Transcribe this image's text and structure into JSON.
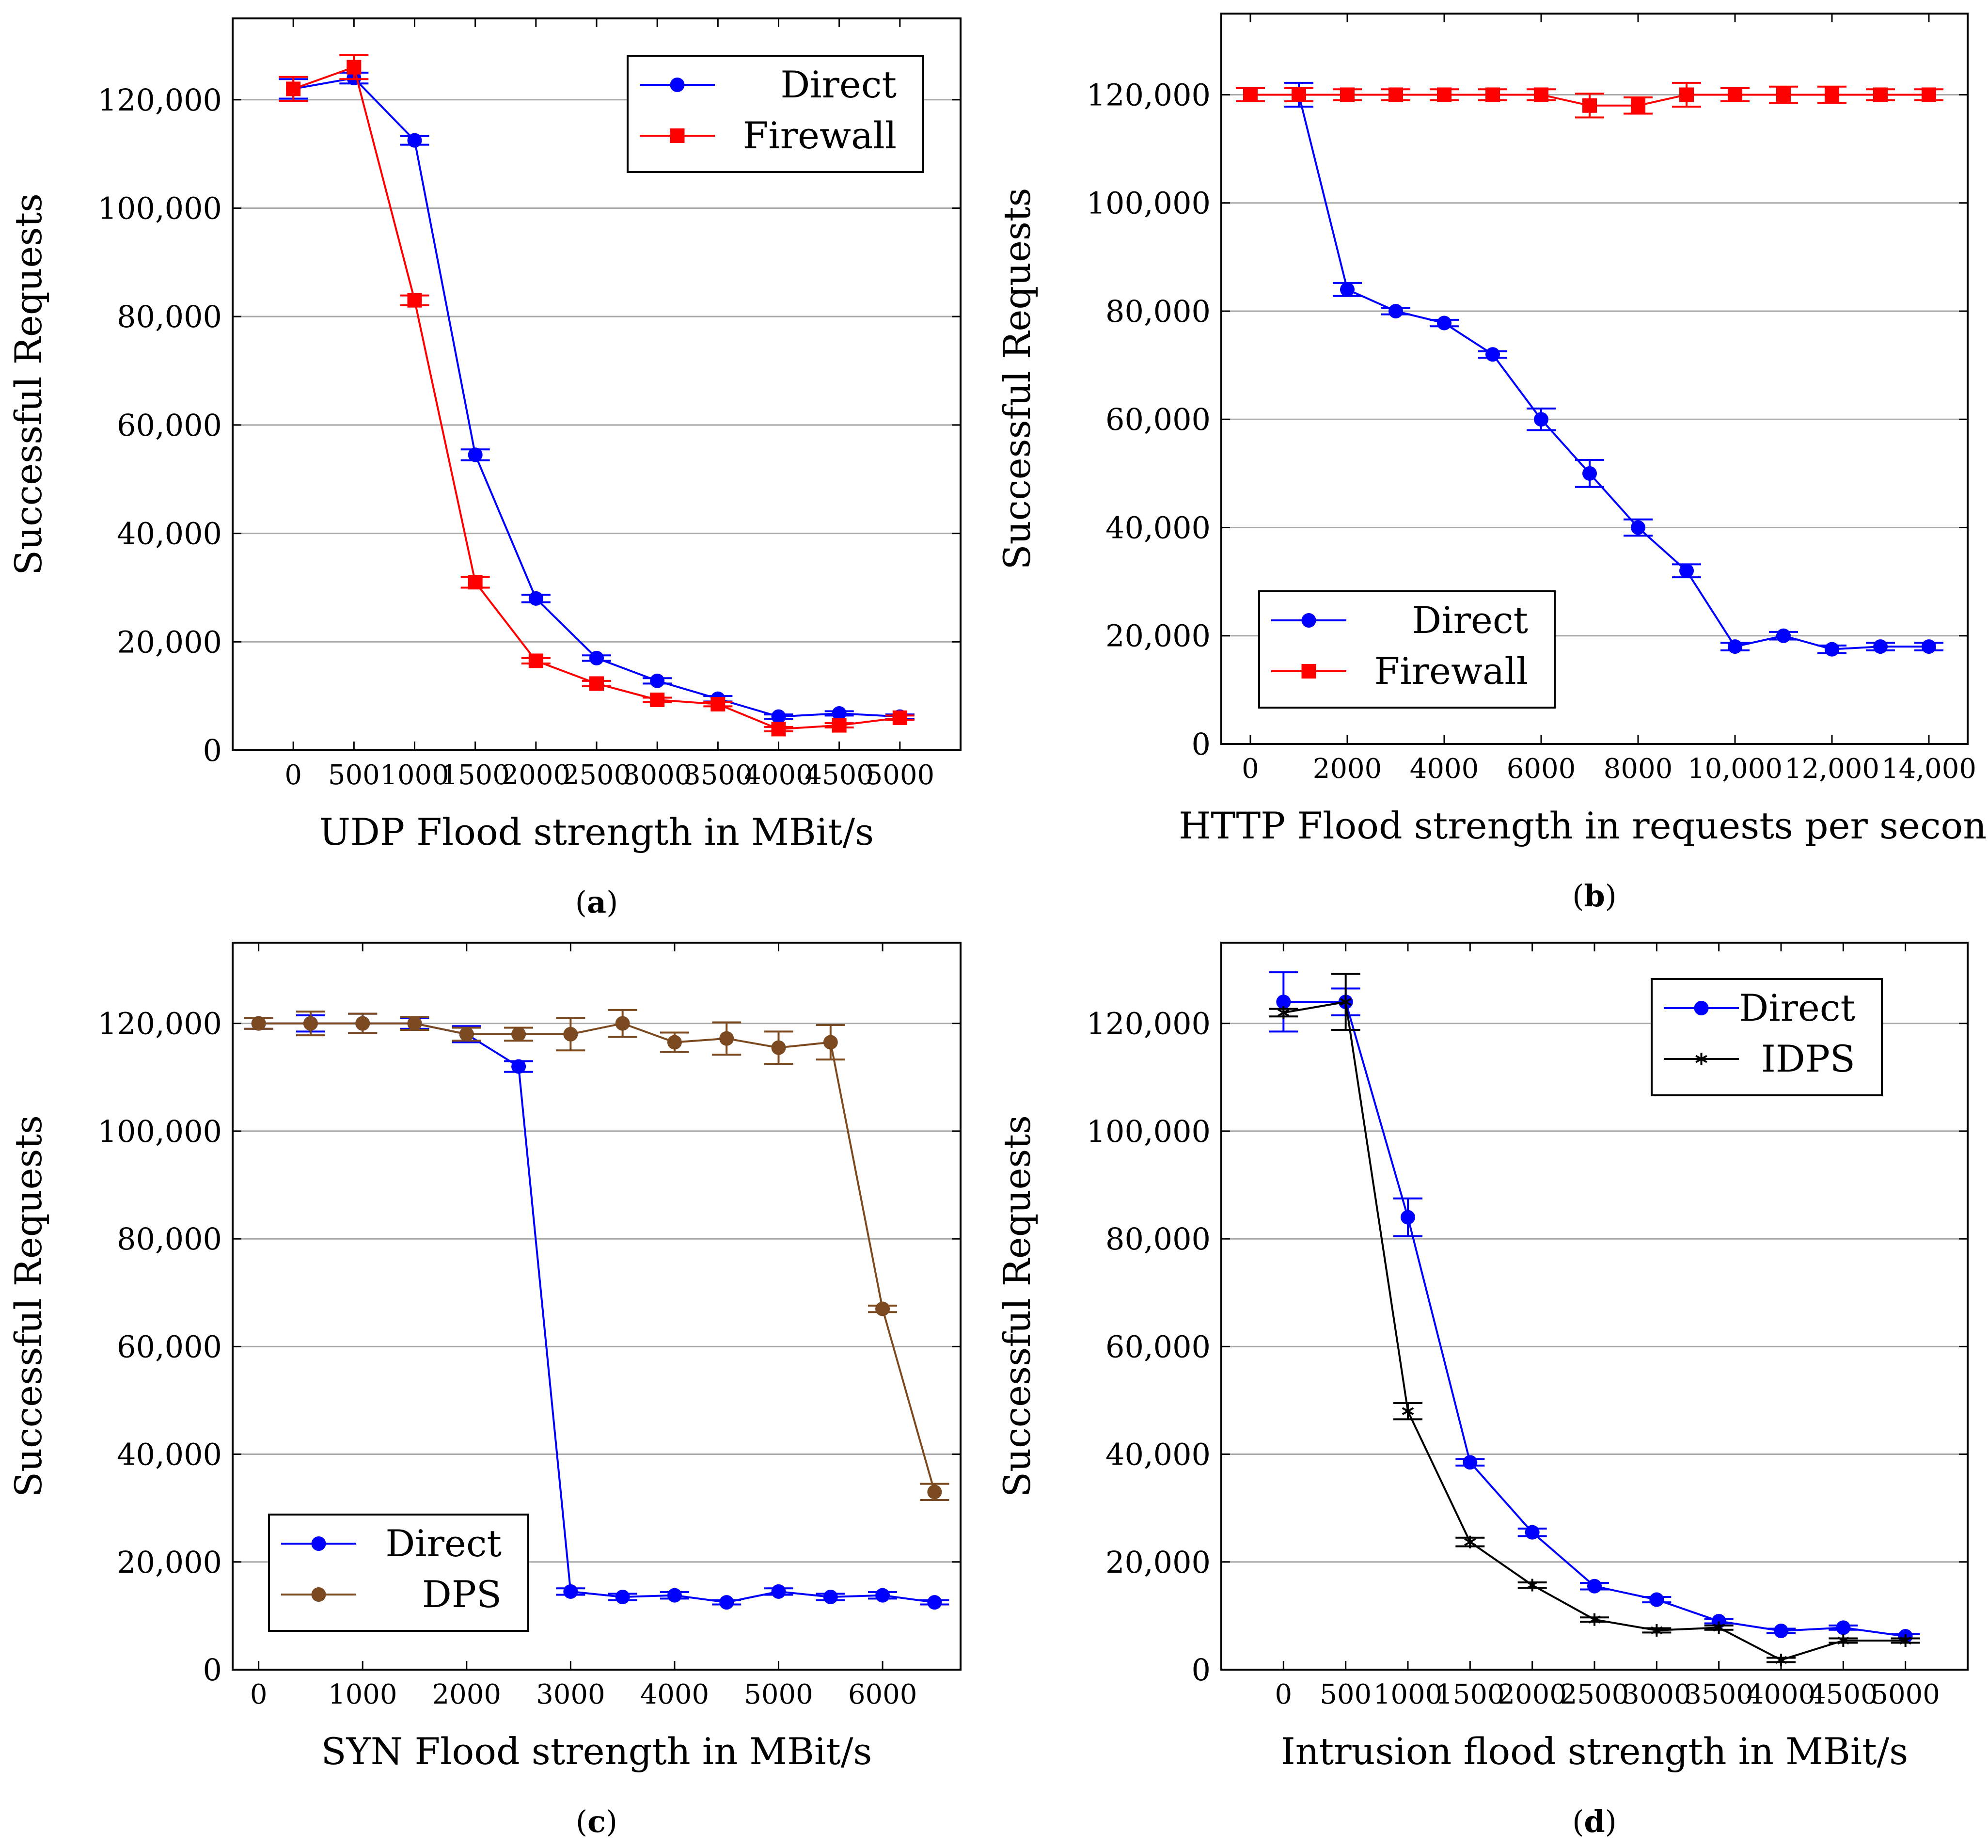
{
  "chart_data": [
    {
      "id": "a",
      "type": "line",
      "caption": "a",
      "title": "",
      "xlabel": "UDP Flood strength in MBit/s",
      "ylabel": "Successful Requests",
      "xticks": [
        "0",
        "500",
        "1000",
        "1500",
        "2000",
        "2500",
        "3000",
        "3500",
        "4000",
        "4500",
        "5000"
      ],
      "xlim": [
        -500,
        5500
      ],
      "ylim": [
        0,
        135000
      ],
      "yticks": [
        0,
        20000,
        40000,
        60000,
        80000,
        100000,
        120000
      ],
      "ytick_labels": [
        "0",
        "20,000",
        "40,000",
        "60,000",
        "80,000",
        "100,000",
        "120,000"
      ],
      "grid": "horizontal",
      "legend_position": "top-right",
      "series": [
        {
          "name": "Direct",
          "color": "#0000ff",
          "marker": "circle",
          "x": [
            0,
            500,
            1000,
            1500,
            2000,
            2500,
            3000,
            3500,
            4000,
            4500,
            5000
          ],
          "y": [
            122000,
            124000,
            112500,
            54500,
            28000,
            17000,
            12800,
            9500,
            6200,
            6800,
            6200
          ],
          "err": [
            1800,
            1000,
            800,
            1000,
            700,
            500,
            500,
            500,
            400,
            400,
            400
          ]
        },
        {
          "name": "Firewall",
          "color": "#ff0000",
          "marker": "square",
          "x": [
            0,
            500,
            1000,
            1500,
            2000,
            2500,
            3000,
            3500,
            4000,
            4500,
            5000
          ],
          "y": [
            122000,
            126000,
            83000,
            31000,
            16500,
            12300,
            9300,
            8500,
            3900,
            4600,
            6000
          ],
          "err": [
            2200,
            2200,
            900,
            1000,
            500,
            500,
            400,
            400,
            400,
            400,
            400
          ]
        }
      ]
    },
    {
      "id": "b",
      "type": "line",
      "caption": "b",
      "title": "",
      "xlabel": "HTTP Flood strength in requests per second",
      "ylabel": "Successful Requests",
      "xticks": [
        "0",
        "2000",
        "4000",
        "6000",
        "8000",
        "10,000",
        "12,000",
        "14,000"
      ],
      "xtick_values": [
        0,
        2000,
        4000,
        6000,
        8000,
        10000,
        12000,
        14000
      ],
      "xlim": [
        -600,
        14800
      ],
      "ylim": [
        0,
        135000
      ],
      "yticks": [
        0,
        20000,
        40000,
        60000,
        80000,
        100000,
        120000
      ],
      "ytick_labels": [
        "0",
        "20,000",
        "40,000",
        "60,000",
        "80,000",
        "100,000",
        "120,000"
      ],
      "grid": "horizontal",
      "legend_position": "bottom-left",
      "series": [
        {
          "name": "Direct",
          "color": "#0000ff",
          "marker": "circle",
          "x": [
            0,
            1000,
            2000,
            3000,
            4000,
            5000,
            6000,
            7000,
            8000,
            9000,
            10000,
            11000,
            12000,
            13000,
            14000
          ],
          "y": [
            120000,
            120000,
            84000,
            80000,
            77800,
            72000,
            60000,
            50000,
            40000,
            32000,
            18000,
            20000,
            17500,
            18000,
            18000
          ],
          "err": [
            1200,
            2200,
            1200,
            600,
            600,
            600,
            2000,
            2500,
            1500,
            1200,
            700,
            700,
            700,
            700,
            700
          ]
        },
        {
          "name": "Firewall",
          "color": "#ff0000",
          "marker": "square",
          "x": [
            0,
            1000,
            2000,
            3000,
            4000,
            5000,
            6000,
            7000,
            8000,
            9000,
            10000,
            11000,
            12000,
            13000,
            14000
          ],
          "y": [
            120000,
            120000,
            120000,
            120000,
            120000,
            120000,
            120000,
            118000,
            118000,
            120000,
            120000,
            120000,
            120000,
            120000,
            120000
          ],
          "err": [
            1200,
            1200,
            1000,
            1000,
            1000,
            1000,
            1000,
            2200,
            1500,
            2200,
            1200,
            1500,
            1500,
            1000,
            1000
          ]
        }
      ]
    },
    {
      "id": "c",
      "type": "line",
      "caption": "c",
      "title": "",
      "xlabel": "SYN Flood strength in MBit/s",
      "ylabel": "Successful Requests",
      "xticks": [
        "0",
        "1000",
        "2000",
        "3000",
        "4000",
        "5000",
        "6000"
      ],
      "xtick_values": [
        0,
        1000,
        2000,
        3000,
        4000,
        5000,
        6000
      ],
      "xlim": [
        -250,
        6750
      ],
      "ylim": [
        0,
        135000
      ],
      "yticks": [
        0,
        20000,
        40000,
        60000,
        80000,
        100000,
        120000
      ],
      "ytick_labels": [
        "0",
        "20,000",
        "40,000",
        "60,000",
        "80,000",
        "100,000",
        "120,000"
      ],
      "grid": "horizontal",
      "legend_position": "bottom-left",
      "series": [
        {
          "name": "Direct",
          "color": "#0000ff",
          "marker": "circle",
          "x": [
            0,
            500,
            1000,
            1500,
            2000,
            2500,
            3000,
            3500,
            4000,
            4500,
            5000,
            5500,
            6000,
            6500
          ],
          "y": [
            120000,
            120000,
            120000,
            120000,
            118000,
            112000,
            14500,
            13500,
            13800,
            12500,
            14500,
            13500,
            13800,
            12500
          ],
          "err": [
            1000,
            1500,
            1800,
            1000,
            1500,
            1000,
            600,
            600,
            600,
            400,
            600,
            600,
            600,
            400
          ]
        },
        {
          "name": "DPS",
          "color": "#7b4a20",
          "marker": "circle",
          "x": [
            0,
            500,
            1000,
            1500,
            2000,
            2500,
            3000,
            3500,
            4000,
            4500,
            5000,
            5500,
            6000,
            6500
          ],
          "y": [
            120000,
            120000,
            120000,
            120000,
            118000,
            118000,
            118000,
            120000,
            116500,
            117200,
            115500,
            116500,
            67000,
            33000
          ],
          "err": [
            1000,
            2200,
            1800,
            1200,
            1200,
            1200,
            3000,
            2500,
            1800,
            3000,
            3000,
            3200,
            600,
            1500
          ]
        }
      ]
    },
    {
      "id": "d",
      "type": "line",
      "caption": "d",
      "title": "",
      "xlabel": "Intrusion flood strength in MBit/s",
      "ylabel": "Successful Requests",
      "xticks": [
        "0",
        "500",
        "1000",
        "1500",
        "2000",
        "2500",
        "3000",
        "3500",
        "4000",
        "4500",
        "5000"
      ],
      "xlim": [
        -500,
        5500
      ],
      "ylim": [
        0,
        135000
      ],
      "yticks": [
        0,
        20000,
        40000,
        60000,
        80000,
        100000,
        120000
      ],
      "ytick_labels": [
        "0",
        "20,000",
        "40,000",
        "60,000",
        "80,000",
        "100,000",
        "120,000"
      ],
      "grid": "horizontal",
      "legend_position": "top-right",
      "series": [
        {
          "name": "Direct",
          "color": "#0000ff",
          "marker": "circle",
          "x": [
            0,
            500,
            1000,
            1500,
            2000,
            2500,
            3000,
            3500,
            4000,
            4500,
            5000
          ],
          "y": [
            124000,
            124000,
            84000,
            38500,
            25500,
            15500,
            13000,
            9000,
            7200,
            7800,
            6200
          ],
          "err": [
            5500,
            2500,
            3500,
            600,
            700,
            600,
            500,
            400,
            400,
            400,
            400
          ]
        },
        {
          "name": "IDPS",
          "color": "#000000",
          "marker": "star",
          "x": [
            0,
            500,
            1000,
            1500,
            2000,
            2500,
            3000,
            3500,
            4000,
            4500,
            5000
          ],
          "y": [
            122000,
            124000,
            48000,
            23700,
            15700,
            9300,
            7300,
            7800,
            1800,
            5400,
            5400
          ],
          "err": [
            700,
            5200,
            1500,
            800,
            500,
            400,
            400,
            400,
            400,
            400,
            400
          ]
        }
      ]
    }
  ]
}
